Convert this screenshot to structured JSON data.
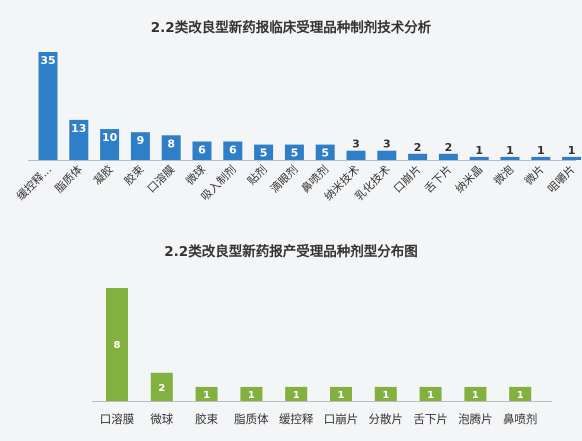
{
  "charts": [
    {
      "type": "bar",
      "title": "2.2类改良型新药报临床受理品种制剂技术分析",
      "color": "#2f7fc8",
      "categories": [
        "缓控释...",
        "脂质体",
        "凝胶",
        "胶束",
        "口溶膜",
        "微球",
        "吸入制剂",
        "贴剂",
        "滴眼剂",
        "鼻喷剂",
        "纳米技术",
        "乳化技术",
        "口崩片",
        "舌下片",
        "纳米晶",
        "微泡",
        "微片",
        "咀嚼片"
      ],
      "values": [
        35,
        13,
        10,
        9,
        8,
        6,
        6,
        5,
        5,
        5,
        3,
        3,
        2,
        2,
        1,
        1,
        1,
        1
      ],
      "labels": [
        "35",
        "13",
        "10",
        "9",
        "8",
        "6",
        "6",
        "5",
        "5",
        "5",
        "3",
        "3",
        "2",
        "2",
        "1",
        "1",
        "1",
        "1"
      ],
      "ylim": [
        0,
        35
      ]
    },
    {
      "type": "bar",
      "title": "2.2类改良型新药报产受理品种剂型分布图",
      "color": "#82b140",
      "categories": [
        "口溶膜",
        "微球",
        "胶束",
        "脂质体",
        "缓控释",
        "口崩片",
        "分散片",
        "舌下片",
        "泡腾片",
        "鼻喷剂"
      ],
      "values": [
        8,
        2,
        1,
        1,
        1,
        1,
        1,
        1,
        1,
        1
      ],
      "labels": [
        "8",
        "2",
        "1",
        "1",
        "1",
        "1",
        "1",
        "1",
        "1",
        "1"
      ],
      "ylim": [
        0,
        8
      ]
    }
  ]
}
